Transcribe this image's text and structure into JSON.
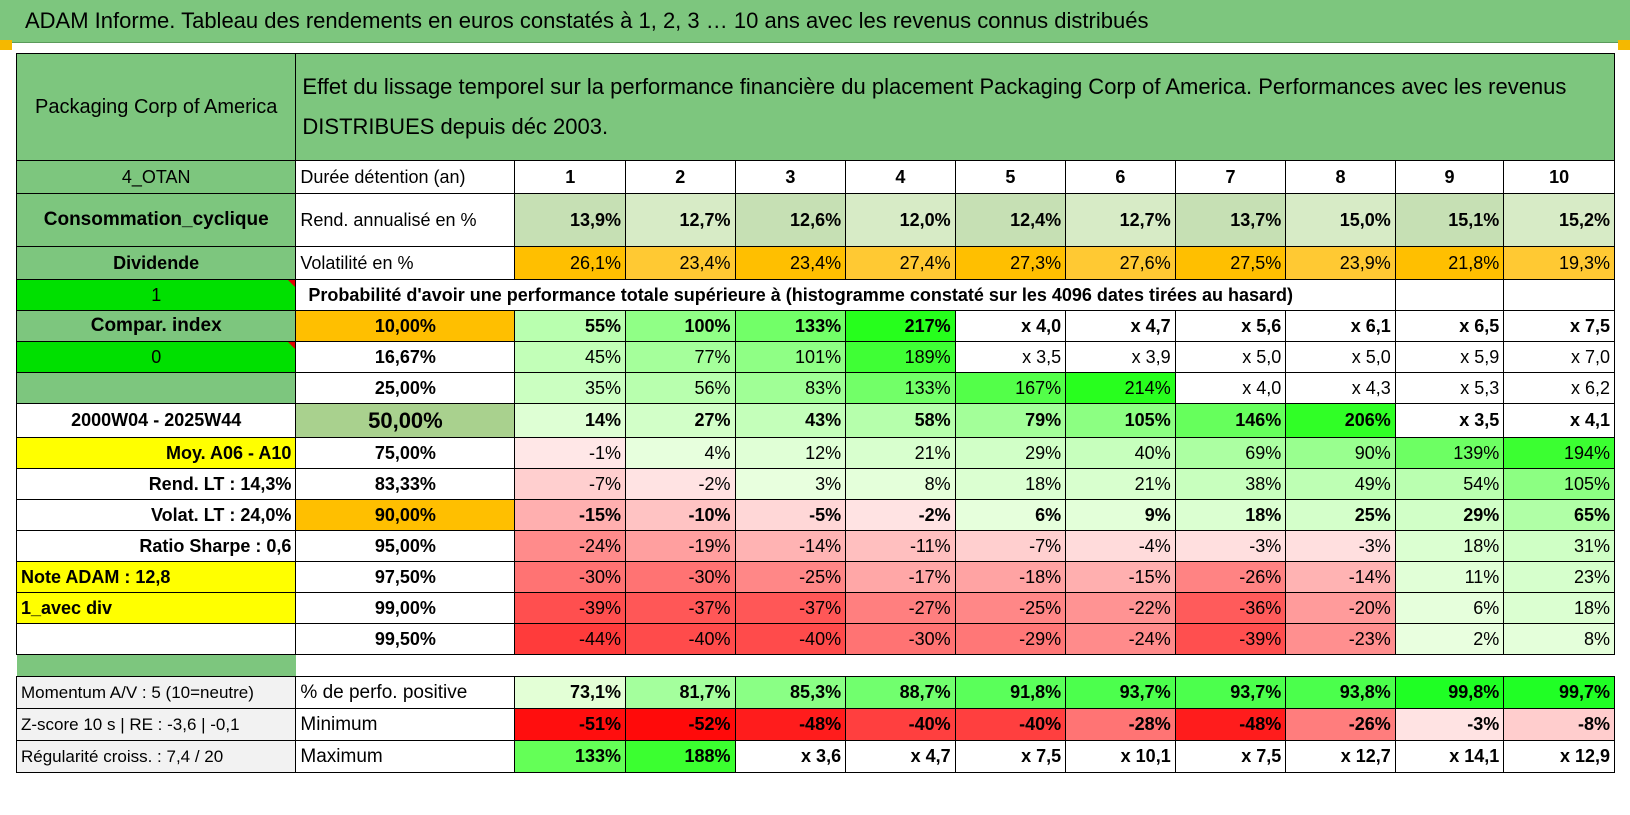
{
  "title": "ADAM Informe. Tableau des rendements en euros constatés à 1, 2, 3 … 10 ans avec les revenus connus distribués",
  "company": "Packaging Corp of America",
  "description": "Effet du lissage temporel sur la performance financière du placement Packaging Corp of America. Performances avec les revenus DISTRIBUES depuis déc 2003.",
  "left_labels": {
    "code": "4_OTAN",
    "sector": "Consommation_cyclique",
    "dividend": "Dividende",
    "one": "1",
    "compar": "Compar. index",
    "zero": "0",
    "period": "2000W04 - 2025W44",
    "moy": "Moy. A06 - A10",
    "rend_lt": "Rend. LT :    14,3%",
    "volat_lt": "Volat. LT :    24,0%",
    "sharpe": "Ratio Sharpe :    0,6",
    "note": "Note ADAM : 12,8",
    "avec_div": "1_avec div",
    "momentum": "Momentum A/V : 5 (10=neutre)",
    "zscore": "Z-score 10 s | RE : -3,6 | -0,1",
    "regularite": "Régularité croiss. : 7,4 / 20"
  },
  "row_labels": {
    "duree": "Durée détention (an)",
    "rend": "Rend. annualisé en %",
    "volat": "Volatilité en %",
    "proba": "Probabilité d'avoir une performance totale supérieure à (histogramme constaté sur les 4096 dates tirées au hasard)",
    "positive": "% de perfo. positive",
    "minimum": "Minimum",
    "maximum": "Maximum"
  },
  "years": [
    "1",
    "2",
    "3",
    "4",
    "5",
    "6",
    "7",
    "8",
    "9",
    "10"
  ],
  "rend": [
    "13,9%",
    "12,7%",
    "12,6%",
    "12,0%",
    "12,4%",
    "12,7%",
    "13,7%",
    "15,0%",
    "15,1%",
    "15,2%"
  ],
  "volat": [
    "26,1%",
    "23,4%",
    "23,4%",
    "27,4%",
    "27,3%",
    "27,6%",
    "27,5%",
    "23,9%",
    "21,8%",
    "19,3%"
  ],
  "prob_rows": [
    {
      "pct": "10,00%",
      "vals": [
        "55%",
        "100%",
        "133%",
        "217%",
        "x 4,0",
        "x 4,7",
        "x 5,6",
        "x 6,1",
        "x 6,5",
        "x 7,5"
      ]
    },
    {
      "pct": "16,67%",
      "vals": [
        "45%",
        "77%",
        "101%",
        "189%",
        "x 3,5",
        "x 3,9",
        "x 5,0",
        "x 5,0",
        "x 5,9",
        "x 7,0"
      ]
    },
    {
      "pct": "25,00%",
      "vals": [
        "35%",
        "56%",
        "83%",
        "133%",
        "167%",
        "214%",
        "x 4,0",
        "x 4,3",
        "x 5,3",
        "x 6,2"
      ]
    },
    {
      "pct": "50,00%",
      "vals": [
        "14%",
        "27%",
        "43%",
        "58%",
        "79%",
        "105%",
        "146%",
        "206%",
        "x 3,5",
        "x 4,1"
      ]
    },
    {
      "pct": "75,00%",
      "vals": [
        "-1%",
        "4%",
        "12%",
        "21%",
        "29%",
        "40%",
        "69%",
        "90%",
        "139%",
        "194%"
      ]
    },
    {
      "pct": "83,33%",
      "vals": [
        "-7%",
        "-2%",
        "3%",
        "8%",
        "18%",
        "21%",
        "38%",
        "49%",
        "54%",
        "105%"
      ]
    },
    {
      "pct": "90,00%",
      "vals": [
        "-15%",
        "-10%",
        "-5%",
        "-2%",
        "6%",
        "9%",
        "18%",
        "25%",
        "29%",
        "65%"
      ]
    },
    {
      "pct": "95,00%",
      "vals": [
        "-24%",
        "-19%",
        "-14%",
        "-11%",
        "-7%",
        "-4%",
        "-3%",
        "-3%",
        "18%",
        "31%"
      ]
    },
    {
      "pct": "97,50%",
      "vals": [
        "-30%",
        "-30%",
        "-25%",
        "-17%",
        "-18%",
        "-15%",
        "-26%",
        "-14%",
        "11%",
        "23%"
      ]
    },
    {
      "pct": "99,00%",
      "vals": [
        "-39%",
        "-37%",
        "-37%",
        "-27%",
        "-25%",
        "-22%",
        "-36%",
        "-20%",
        "6%",
        "18%"
      ]
    },
    {
      "pct": "99,50%",
      "vals": [
        "-44%",
        "-40%",
        "-40%",
        "-30%",
        "-29%",
        "-24%",
        "-39%",
        "-23%",
        "2%",
        "8%"
      ]
    }
  ],
  "positive": [
    "73,1%",
    "81,7%",
    "85,3%",
    "88,7%",
    "91,8%",
    "93,7%",
    "93,7%",
    "93,8%",
    "99,8%",
    "99,7%"
  ],
  "minimum": [
    "-51%",
    "-52%",
    "-48%",
    "-40%",
    "-40%",
    "-28%",
    "-48%",
    "-26%",
    "-3%",
    "-8%"
  ],
  "maximum": [
    "133%",
    "188%",
    "x 3,6",
    "x 4,7",
    "x 7,5",
    "x 10,1",
    "x 7,5",
    "x 12,7",
    "x 14,1",
    "x 12,9"
  ],
  "colors": {
    "header_green": "#7dc67e",
    "bright_green": "#00e000",
    "orange": "#ffbf00",
    "yellow": "#ffff00",
    "red_text": "#e00000"
  }
}
